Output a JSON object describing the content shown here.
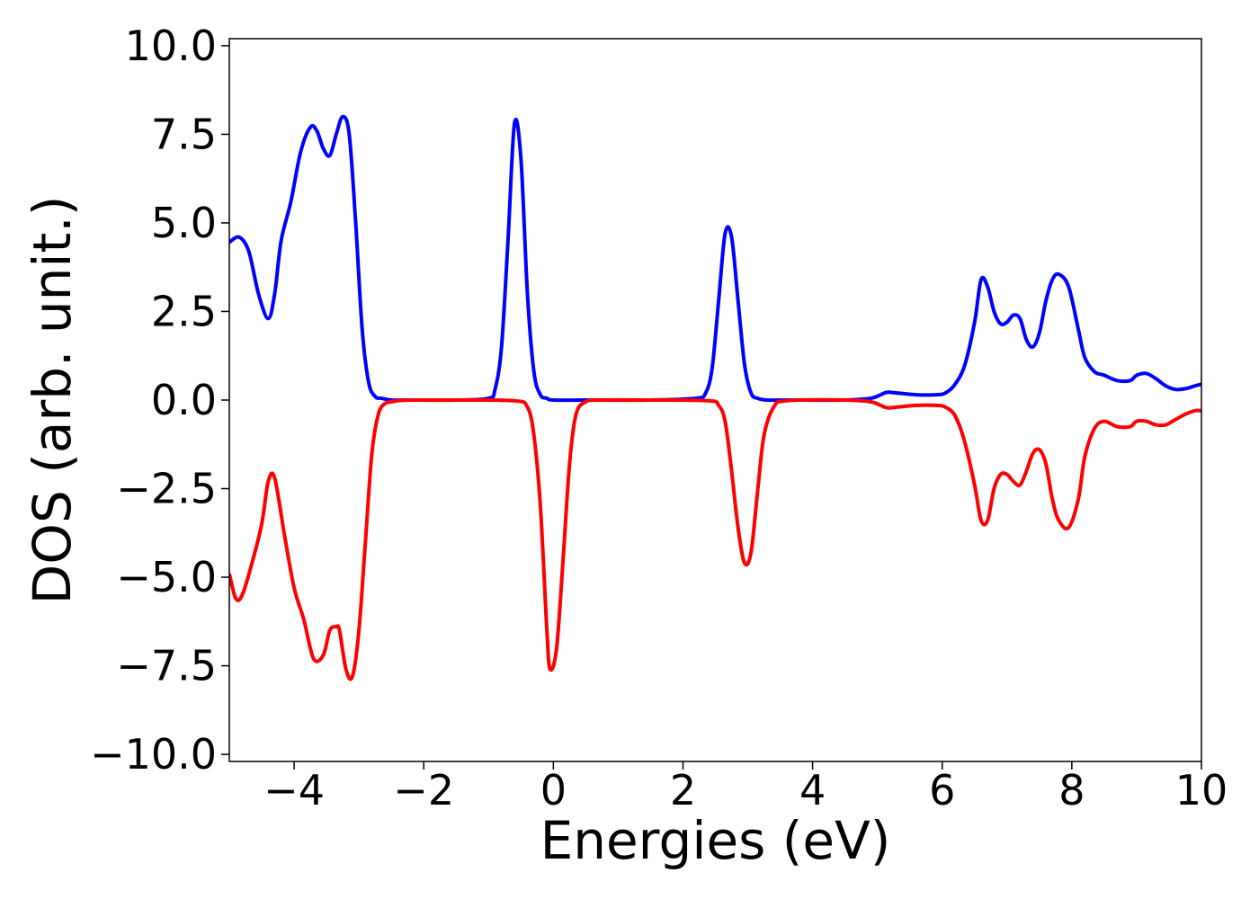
{
  "chart_data": {
    "type": "line",
    "title": "",
    "xlabel": "Energies (eV)",
    "ylabel": "DOS (arb. unit.)",
    "xlim": [
      -5,
      10
    ],
    "ylim": [
      -10.2,
      10.2
    ],
    "xticks": [
      -4,
      -2,
      0,
      2,
      4,
      6,
      8,
      10
    ],
    "xtick_labels": [
      "−4",
      "−2",
      "0",
      "2",
      "4",
      "6",
      "8",
      "10"
    ],
    "yticks": [
      10,
      7.5,
      5,
      2.5,
      0,
      -2.5,
      -5,
      -7.5,
      -10
    ],
    "ytick_labels": [
      "10.0",
      "7.5",
      "5.0",
      "2.5",
      "0.0",
      "−2.5",
      "−5.0",
      "−7.5",
      "−10.0"
    ],
    "grid": false,
    "legend": "none",
    "series": [
      {
        "color": "#0000ff",
        "x": [
          -5.0,
          -4.85,
          -4.7,
          -4.55,
          -4.4,
          -4.3,
          -4.2,
          -4.05,
          -3.9,
          -3.75,
          -3.65,
          -3.55,
          -3.45,
          -3.35,
          -3.25,
          -3.15,
          -3.05,
          -2.95,
          -2.85,
          -2.75,
          -2.65,
          -2.5,
          -2.3,
          -1.5,
          -1.0,
          -0.9,
          -0.8,
          -0.7,
          -0.6,
          -0.5,
          -0.4,
          -0.3,
          -0.2,
          -0.1,
          0.0,
          0.5,
          1.5,
          2.2,
          2.35,
          2.45,
          2.55,
          2.65,
          2.75,
          2.85,
          2.95,
          3.05,
          3.15,
          3.3,
          3.6,
          4.5,
          4.9,
          5.05,
          5.15,
          5.3,
          5.6,
          5.9,
          6.05,
          6.2,
          6.35,
          6.5,
          6.6,
          6.7,
          6.8,
          6.9,
          7.0,
          7.1,
          7.2,
          7.3,
          7.4,
          7.5,
          7.6,
          7.7,
          7.8,
          7.95,
          8.1,
          8.2,
          8.35,
          8.5,
          8.7,
          8.9,
          9.0,
          9.15,
          9.3,
          9.45,
          9.6,
          9.75,
          9.9,
          10.0
        ],
        "y": [
          4.45,
          4.6,
          4.2,
          3.0,
          2.3,
          3.0,
          4.5,
          5.6,
          7.0,
          7.7,
          7.6,
          7.1,
          6.9,
          7.5,
          8.0,
          7.5,
          5.0,
          2.0,
          0.5,
          0.1,
          0.05,
          0.0,
          0.0,
          0.0,
          0.05,
          0.3,
          1.5,
          4.5,
          7.8,
          6.8,
          3.0,
          0.8,
          0.15,
          0.05,
          0.0,
          0.0,
          0.0,
          0.05,
          0.2,
          0.9,
          2.8,
          4.7,
          4.6,
          2.8,
          1.0,
          0.2,
          0.05,
          0.0,
          0.0,
          0.0,
          0.05,
          0.15,
          0.22,
          0.2,
          0.15,
          0.15,
          0.2,
          0.45,
          1.0,
          2.2,
          3.4,
          3.2,
          2.5,
          2.15,
          2.2,
          2.4,
          2.3,
          1.7,
          1.5,
          1.9,
          2.8,
          3.4,
          3.55,
          3.2,
          2.0,
          1.2,
          0.8,
          0.7,
          0.55,
          0.55,
          0.7,
          0.75,
          0.6,
          0.4,
          0.3,
          0.32,
          0.4,
          0.45
        ]
      },
      {
        "color": "#ff0000",
        "x": [
          -5.0,
          -4.9,
          -4.8,
          -4.65,
          -4.5,
          -4.4,
          -4.3,
          -4.15,
          -4.0,
          -3.85,
          -3.7,
          -3.55,
          -3.45,
          -3.35,
          -3.3,
          -3.2,
          -3.1,
          -3.0,
          -2.9,
          -2.8,
          -2.7,
          -2.6,
          -2.5,
          -2.4,
          -2.2,
          -1.5,
          -0.6,
          -0.4,
          -0.3,
          -0.2,
          -0.1,
          -0.05,
          0.05,
          0.15,
          0.25,
          0.35,
          0.5,
          0.7,
          1.5,
          2.4,
          2.55,
          2.65,
          2.75,
          2.85,
          2.95,
          3.05,
          3.15,
          3.25,
          3.4,
          3.6,
          4.5,
          4.9,
          5.05,
          5.15,
          5.3,
          5.6,
          5.9,
          6.05,
          6.2,
          6.35,
          6.5,
          6.6,
          6.7,
          6.8,
          6.9,
          7.0,
          7.1,
          7.2,
          7.3,
          7.4,
          7.5,
          7.6,
          7.7,
          7.8,
          7.95,
          8.1,
          8.2,
          8.35,
          8.5,
          8.7,
          8.9,
          9.0,
          9.15,
          9.3,
          9.45,
          9.6,
          9.75,
          9.9,
          10.0
        ],
        "y": [
          -4.9,
          -5.6,
          -5.5,
          -4.6,
          -3.5,
          -2.3,
          -2.2,
          -3.8,
          -5.3,
          -6.2,
          -7.3,
          -7.2,
          -6.5,
          -6.4,
          -6.5,
          -7.6,
          -7.8,
          -6.5,
          -4.0,
          -1.5,
          -0.4,
          -0.1,
          -0.05,
          -0.02,
          0.0,
          0.0,
          -0.02,
          -0.2,
          -1.0,
          -3.0,
          -6.5,
          -7.6,
          -7.0,
          -4.5,
          -1.8,
          -0.4,
          -0.05,
          0.0,
          0.0,
          -0.02,
          -0.15,
          -0.6,
          -2.0,
          -3.6,
          -4.6,
          -4.3,
          -2.6,
          -1.0,
          -0.2,
          -0.02,
          0.0,
          -0.05,
          -0.15,
          -0.22,
          -0.2,
          -0.15,
          -0.15,
          -0.2,
          -0.45,
          -1.2,
          -2.4,
          -3.4,
          -3.4,
          -2.5,
          -2.1,
          -2.1,
          -2.3,
          -2.4,
          -2.0,
          -1.5,
          -1.4,
          -1.8,
          -2.8,
          -3.4,
          -3.6,
          -2.8,
          -1.6,
          -0.8,
          -0.6,
          -0.75,
          -0.75,
          -0.6,
          -0.6,
          -0.7,
          -0.7,
          -0.55,
          -0.4,
          -0.3,
          -0.3
        ]
      }
    ]
  }
}
